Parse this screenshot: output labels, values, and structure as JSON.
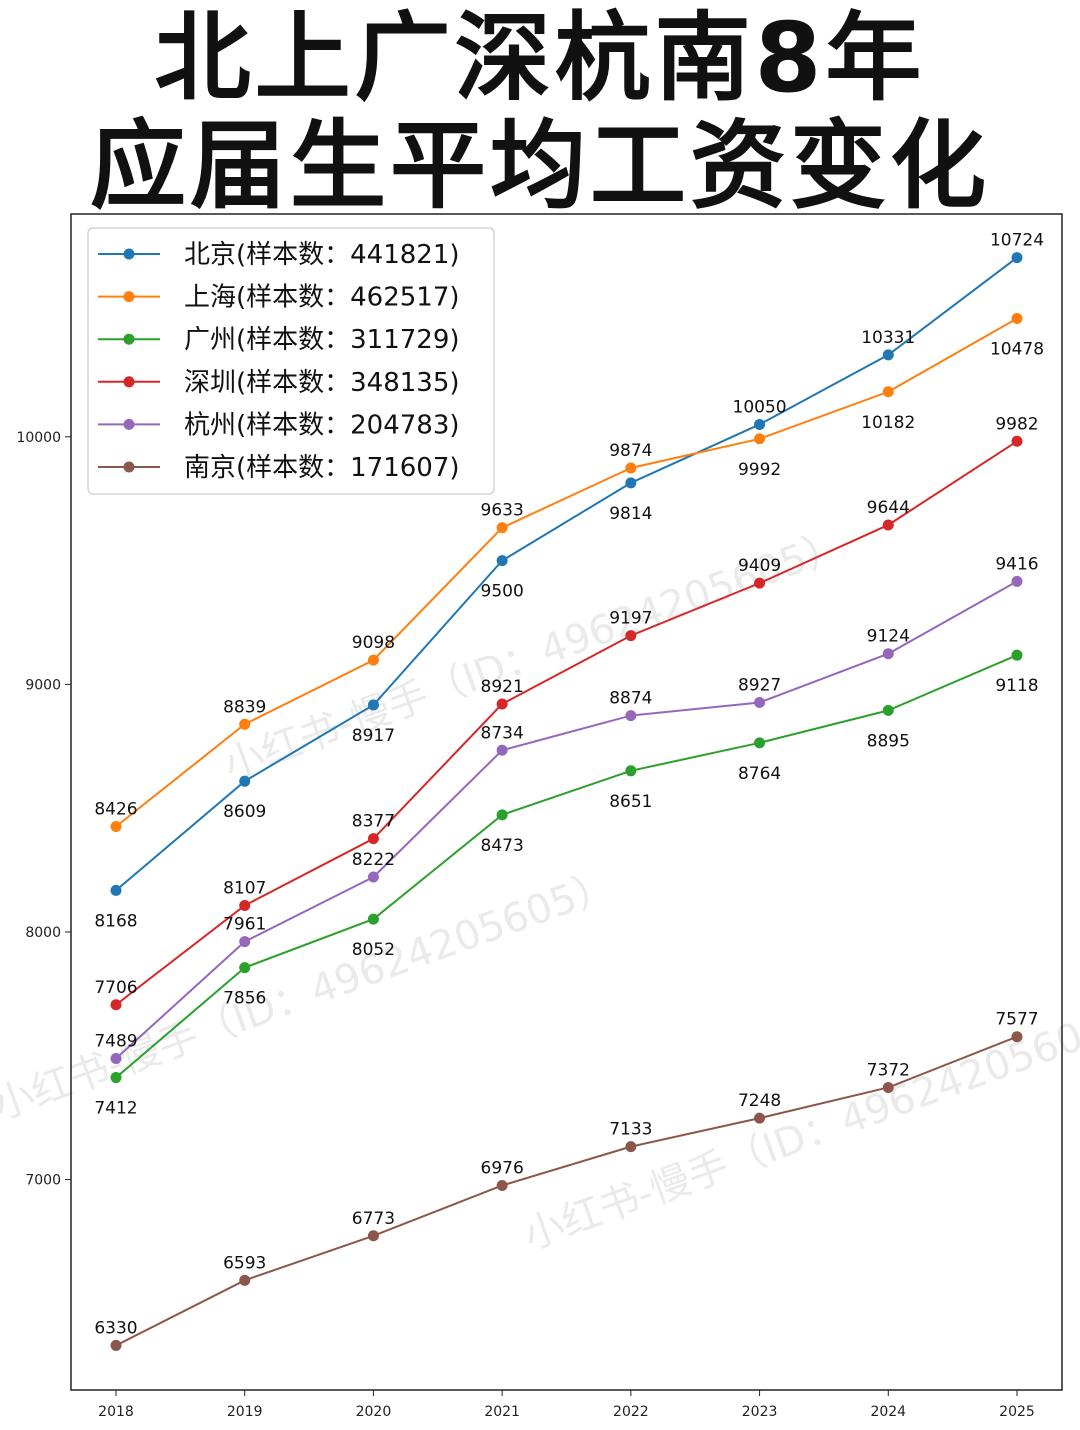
{
  "title_line1": "北上广深杭南8年",
  "title_line2": "应届生平均工资变化",
  "watermark": "小红书-慢手（ID：49624205605）",
  "chart_data": {
    "type": "line",
    "x": [
      "2018",
      "2019",
      "2020",
      "2021",
      "2022",
      "2023",
      "2024",
      "2025"
    ],
    "ylim": [
      6150,
      10900
    ],
    "yticks": [
      7000,
      8000,
      9000,
      10000
    ],
    "grid": false,
    "legend_position": "top-left",
    "series": [
      {
        "name": "北京(样本数：441821)",
        "color": "#1f77b4",
        "values": [
          8168,
          8609,
          8917,
          9500,
          9814,
          10050,
          10331,
          10724
        ],
        "label_pos": [
          "below",
          "below",
          "below",
          "below",
          "below",
          "above",
          "above",
          "above"
        ]
      },
      {
        "name": "上海(样本数：462517)",
        "color": "#ff7f0e",
        "values": [
          8426,
          8839,
          9098,
          9633,
          9874,
          9992,
          10182,
          10478
        ],
        "label_pos": [
          "above",
          "above",
          "above",
          "above",
          "above",
          "below",
          "below",
          "below"
        ]
      },
      {
        "name": "广州(样本数：311729)",
        "color": "#2ca02c",
        "values": [
          7412,
          7856,
          8052,
          8473,
          8651,
          8764,
          8895,
          9118
        ],
        "label_pos": [
          "below",
          "below",
          "below",
          "below",
          "below",
          "below",
          "below",
          "below"
        ]
      },
      {
        "name": "深圳(样本数：348135)",
        "color": "#d62728",
        "values": [
          7706,
          8107,
          8377,
          8921,
          9197,
          9409,
          9644,
          9982
        ],
        "label_pos": [
          "above",
          "above",
          "above",
          "above",
          "above",
          "above",
          "above",
          "above"
        ]
      },
      {
        "name": "杭州(样本数：204783)",
        "color": "#9467bd",
        "values": [
          7489,
          7961,
          8222,
          8734,
          8874,
          8927,
          9124,
          9416
        ],
        "label_pos": [
          "above",
          "above",
          "above",
          "above",
          "above",
          "above",
          "above",
          "above"
        ]
      },
      {
        "name": "南京(样本数：171607)",
        "color": "#8c564b",
        "values": [
          6330,
          6593,
          6773,
          6976,
          7133,
          7248,
          7372,
          7577
        ],
        "label_pos": [
          "above",
          "above",
          "above",
          "above",
          "above",
          "above",
          "above",
          "above"
        ]
      }
    ]
  }
}
